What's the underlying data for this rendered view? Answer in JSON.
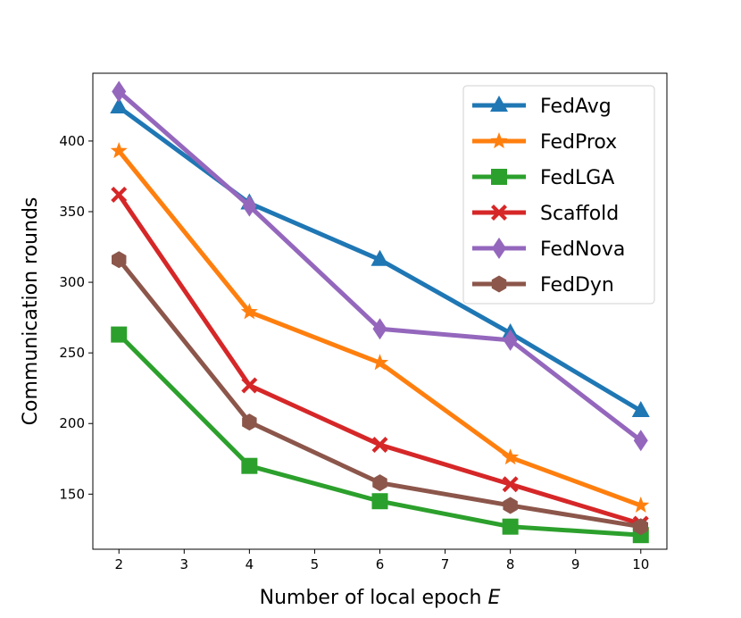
{
  "chart_data": {
    "type": "line",
    "title": "",
    "xlabel": "Number of local epoch ",
    "xlabel_var": "E",
    "ylabel": "Communication rounds",
    "xlim": [
      1.6,
      10.4
    ],
    "ylim": [
      111,
      448
    ],
    "xticks": [
      2,
      3,
      4,
      5,
      6,
      7,
      8,
      9,
      10
    ],
    "yticks": [
      150,
      200,
      250,
      300,
      350,
      400
    ],
    "x": [
      2,
      4,
      6,
      8,
      10
    ],
    "legend_position": "top-right",
    "series": [
      {
        "name": "FedAvg",
        "color": "#1f77b4",
        "marker": "triangle",
        "values": [
          424,
          356,
          316,
          264,
          209
        ]
      },
      {
        "name": "FedProx",
        "color": "#ff7f0e",
        "marker": "star",
        "values": [
          393,
          279,
          243,
          176,
          142
        ]
      },
      {
        "name": "FedLGA",
        "color": "#2ca02c",
        "marker": "square",
        "values": [
          263,
          170,
          145,
          127,
          121
        ]
      },
      {
        "name": "Scaffold",
        "color": "#d62728",
        "marker": "x",
        "values": [
          362,
          227,
          185,
          157,
          129
        ]
      },
      {
        "name": "FedNova",
        "color": "#9467bd",
        "marker": "diamond",
        "values": [
          435,
          354,
          267,
          259,
          188
        ]
      },
      {
        "name": "FedDyn",
        "color": "#8c564b",
        "marker": "hexagon",
        "values": [
          316,
          201,
          158,
          142,
          127
        ]
      }
    ]
  }
}
